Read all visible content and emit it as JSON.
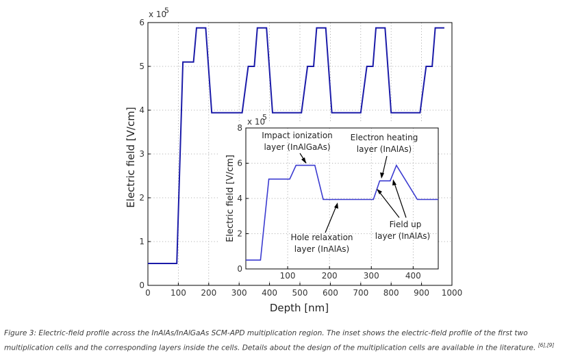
{
  "chart_data": [
    {
      "type": "line",
      "title": "",
      "xlabel": "Depth [nm]",
      "ylabel": "Electric field [V/cm]",
      "y_multiplier": "x 10",
      "y_exponent": "5",
      "xlim": [
        0,
        1000
      ],
      "ylim": [
        0,
        600000
      ],
      "xticks": [
        "0",
        "100",
        "200",
        "300",
        "400",
        "500",
        "600",
        "700",
        "800",
        "900",
        "1000"
      ],
      "yticks": [
        "0",
        "1",
        "2",
        "3",
        "4",
        "5",
        "6"
      ],
      "grid": true,
      "color": "#1a1aa8",
      "x": [
        0,
        95,
        115,
        150,
        160,
        190,
        210,
        310,
        330,
        350,
        360,
        390,
        410,
        505,
        525,
        545,
        555,
        585,
        605,
        700,
        720,
        740,
        750,
        780,
        800,
        895,
        915,
        935,
        945,
        975
      ],
      "y": [
        50000,
        50000,
        510000,
        510000,
        588000,
        588000,
        394000,
        394000,
        500000,
        500000,
        588000,
        588000,
        394000,
        394000,
        500000,
        500000,
        588000,
        588000,
        394000,
        394000,
        500000,
        500000,
        588000,
        588000,
        394000,
        394000,
        500000,
        500000,
        588000,
        588000
      ]
    },
    {
      "type": "line",
      "title": "",
      "inset": true,
      "xlabel": "",
      "ylabel": "Electric field [V/cm]",
      "y_multiplier": "x 10",
      "y_exponent": "5",
      "xlim": [
        0,
        460
      ],
      "ylim": [
        0,
        800000
      ],
      "xticks": [
        "100",
        "200",
        "300",
        "400"
      ],
      "yticks": [
        "0",
        "2",
        "4",
        "6",
        "8"
      ],
      "grid": true,
      "color": "#3a3ad0",
      "x": [
        0,
        35,
        55,
        105,
        120,
        165,
        185,
        305,
        320,
        345,
        360,
        410,
        460
      ],
      "y": [
        50000,
        50000,
        510000,
        510000,
        588000,
        588000,
        394000,
        394000,
        500000,
        500000,
        588000,
        394000,
        394000
      ],
      "annotations": [
        {
          "line1": "Impact ionization",
          "line2": "layer (InAlGaAs)"
        },
        {
          "line1": "Electron heating",
          "line2": "layer (InAlAs)"
        },
        {
          "line1": "Hole relaxation",
          "line2": "layer (InAlAs)"
        },
        {
          "line1": "Field up",
          "line2": "layer (InAlAs)"
        }
      ]
    }
  ],
  "caption": {
    "text": "Figure 3: Electric-field profile across the InAlAs/InAlGaAs SCM-APD multiplication region. The inset shows the electric-field profile of the first two multiplication cells and the corresponding layers inside the cells. Details about the design of the multiplication cells are available in the literature.",
    "refs": "[6],[9]"
  }
}
